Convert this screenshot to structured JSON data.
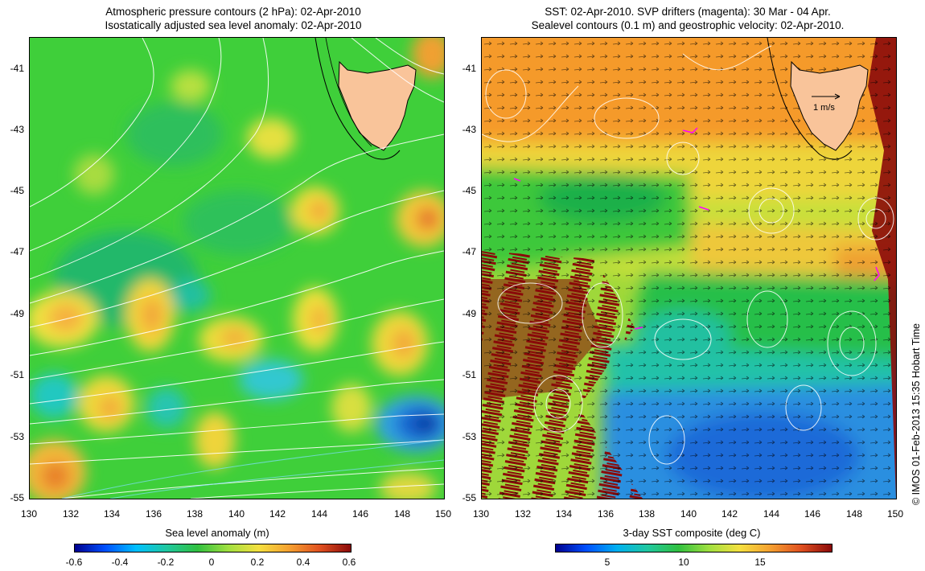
{
  "left_map": {
    "title_line1": "Atmospheric pressure contours (2 hPa): 02-Apr-2010",
    "title_line2": "Isostatically adjusted sea level anomaly: 02-Apr-2010",
    "lat_ticks": [
      "-41",
      "-43",
      "-45",
      "-47",
      "-49",
      "-51",
      "-53",
      "-55"
    ],
    "lon_ticks": [
      "130",
      "132",
      "134",
      "136",
      "138",
      "140",
      "142",
      "144",
      "146",
      "148",
      "150"
    ],
    "colorbar": {
      "label": "Sea level anomaly (m)",
      "ticks": [
        "-0.6",
        "-0.4",
        "-0.2",
        "0",
        "0.2",
        "0.4",
        "0.6"
      ],
      "range": [
        -0.6,
        0.6
      ]
    }
  },
  "right_map": {
    "title_line1": "SST: 02-Apr-2010. SVP drifters (magenta): 30 Mar - 04 Apr.",
    "title_line2": "Sealevel contours (0.1 m) and geostrophic velocity: 02-Apr-2010.",
    "lat_ticks": [
      "-41",
      "-43",
      "-45",
      "-47",
      "-49",
      "-51",
      "-53",
      "-55"
    ],
    "lon_ticks": [
      "130",
      "132",
      "134",
      "136",
      "138",
      "140",
      "142",
      "144",
      "146",
      "148",
      "150"
    ],
    "velocity_scale_label": "1 m/s",
    "colorbar": {
      "label": "3-day SST composite (deg C)",
      "ticks": [
        "5",
        "10",
        "15"
      ],
      "range": [
        1.5,
        19.5
      ]
    }
  },
  "credit": "© IMOS 01-Feb-2013 15:35 Hobart Time",
  "colors": {
    "land": "#f9c49a",
    "missing_data": "#8b0a0a",
    "drifters": "#ff00ff"
  }
}
